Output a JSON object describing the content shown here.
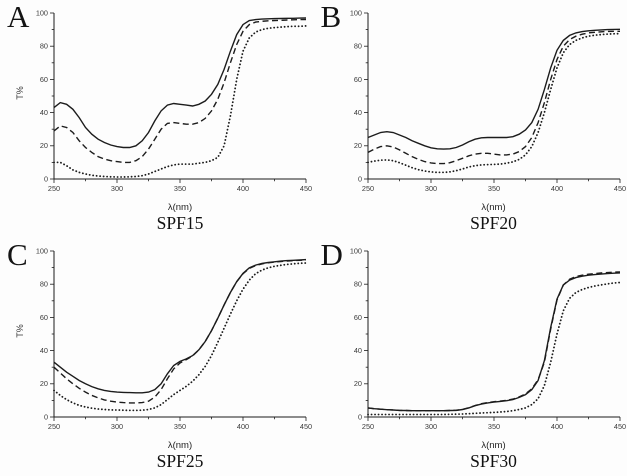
{
  "figure": {
    "background": "#fdfdfd",
    "line_color": "#1c1c1c",
    "tick_label_color": "#3a3a3a"
  },
  "chart_data": [
    {
      "type": "line",
      "letter": "A",
      "title": "SPF15",
      "xlabel": "λ(nm)",
      "ylabel": "T%",
      "xlim": [
        250,
        450
      ],
      "ylim": [
        0,
        100
      ],
      "xticks": [
        250,
        300,
        350,
        400,
        450
      ],
      "yticks": [
        0,
        20,
        40,
        60,
        80,
        100
      ],
      "x_minor_step": 25,
      "y_minor_step": 10,
      "grid": false,
      "legend": "none",
      "x": [
        250,
        255,
        260,
        265,
        270,
        275,
        280,
        285,
        290,
        295,
        300,
        305,
        310,
        315,
        320,
        325,
        330,
        335,
        340,
        345,
        350,
        355,
        360,
        365,
        370,
        375,
        380,
        385,
        390,
        395,
        400,
        405,
        410,
        415,
        420,
        425,
        430,
        435,
        440,
        445,
        450
      ],
      "series": [
        {
          "name": "solid-line",
          "style": "solid",
          "values": [
            43,
            46,
            45,
            42,
            37,
            31,
            27,
            24,
            22,
            20.5,
            19.5,
            19,
            19,
            20,
            23,
            28,
            35,
            41,
            44.5,
            45.5,
            45,
            44.5,
            44,
            45,
            47,
            51,
            57,
            66,
            77,
            87,
            93,
            95.5,
            96,
            96.3,
            96.5,
            96.6,
            96.7,
            96.8,
            96.8,
            96.9,
            97
          ]
        },
        {
          "name": "dashed-line",
          "style": "dashed",
          "values": [
            29,
            32,
            31,
            28,
            23,
            19,
            16,
            13.5,
            12,
            11,
            10.5,
            10,
            10,
            11,
            13.5,
            18,
            24,
            30,
            33.5,
            34,
            33.5,
            33,
            33,
            34,
            36.5,
            41,
            48,
            58,
            70,
            81,
            89,
            93,
            94.5,
            95,
            95.3,
            95.5,
            95.6,
            95.8,
            95.9,
            96,
            96
          ]
        },
        {
          "name": "dotted-line",
          "style": "dotted",
          "values": [
            10,
            10,
            8,
            5.5,
            4,
            3,
            2.2,
            1.8,
            1.5,
            1.3,
            1.2,
            1.2,
            1.3,
            1.5,
            2,
            3,
            4.5,
            6,
            7.5,
            8.5,
            9,
            9,
            9,
            9.5,
            10,
            11,
            13,
            20,
            38,
            60,
            77,
            85,
            88.5,
            90,
            90.8,
            91.2,
            91.5,
            91.8,
            92,
            92,
            92.2
          ]
        }
      ]
    },
    {
      "type": "line",
      "letter": "B",
      "title": "SPF20",
      "xlabel": "λ(nm)",
      "ylabel": "",
      "xlim": [
        250,
        450
      ],
      "ylim": [
        0,
        100
      ],
      "xticks": [
        250,
        300,
        350,
        400,
        450
      ],
      "yticks": [
        0,
        20,
        40,
        60,
        80,
        100
      ],
      "x_minor_step": 25,
      "y_minor_step": 10,
      "grid": false,
      "legend": "none",
      "x": [
        250,
        255,
        260,
        265,
        270,
        275,
        280,
        285,
        290,
        295,
        300,
        305,
        310,
        315,
        320,
        325,
        330,
        335,
        340,
        345,
        350,
        355,
        360,
        365,
        370,
        375,
        380,
        385,
        390,
        395,
        400,
        405,
        410,
        415,
        420,
        425,
        430,
        435,
        440,
        445,
        450
      ],
      "series": [
        {
          "name": "solid-line",
          "style": "solid",
          "values": [
            25,
            26.5,
            28,
            28.5,
            28,
            26.5,
            25,
            23,
            21.5,
            20,
            18.8,
            18.2,
            18,
            18.2,
            19,
            20.5,
            22.5,
            24,
            24.8,
            25,
            25,
            25,
            25,
            25.5,
            27,
            29.5,
            34,
            42,
            54,
            67,
            77.5,
            83.5,
            86.5,
            88,
            88.8,
            89.3,
            89.6,
            89.8,
            90,
            90.1,
            90.2
          ]
        },
        {
          "name": "dashed-line",
          "style": "dashed",
          "values": [
            16,
            18,
            19.5,
            20,
            19.3,
            17.5,
            15.5,
            13.5,
            11.8,
            10.5,
            9.7,
            9.3,
            9.3,
            9.8,
            11,
            12.5,
            14,
            15,
            15.5,
            15.5,
            15,
            14.5,
            14.5,
            15,
            16.5,
            19.5,
            25,
            34,
            46,
            60,
            72,
            80,
            84,
            86,
            87.2,
            88,
            88.4,
            88.7,
            88.9,
            89,
            89
          ]
        },
        {
          "name": "dotted-line",
          "style": "dotted",
          "values": [
            10,
            10.8,
            11.3,
            11.5,
            11,
            9.8,
            8.3,
            6.8,
            5.6,
            4.8,
            4.3,
            4,
            4,
            4.3,
            5,
            6,
            7.2,
            8,
            8.5,
            8.7,
            8.8,
            9,
            9.5,
            10.3,
            11.8,
            14.5,
            19.5,
            28,
            40,
            54,
            67,
            76,
            81,
            83.5,
            85,
            86,
            86.6,
            87,
            87.3,
            87.5,
            87.6
          ]
        }
      ]
    },
    {
      "type": "line",
      "letter": "C",
      "title": "SPF25",
      "xlabel": "λ(nm)",
      "ylabel": "T%",
      "xlim": [
        250,
        450
      ],
      "ylim": [
        0,
        100
      ],
      "xticks": [
        250,
        300,
        350,
        400,
        450
      ],
      "yticks": [
        0,
        20,
        40,
        60,
        80,
        100
      ],
      "x_minor_step": 25,
      "y_minor_step": 10,
      "grid": false,
      "legend": "none",
      "x": [
        250,
        255,
        260,
        265,
        270,
        275,
        280,
        285,
        290,
        295,
        300,
        305,
        310,
        315,
        320,
        325,
        330,
        335,
        340,
        345,
        350,
        355,
        360,
        365,
        370,
        375,
        380,
        385,
        390,
        395,
        400,
        405,
        410,
        415,
        420,
        425,
        430,
        435,
        440,
        445,
        450
      ],
      "series": [
        {
          "name": "solid-line",
          "style": "solid",
          "values": [
            33,
            30,
            27,
            24.5,
            22,
            20,
            18.3,
            17,
            16,
            15.4,
            15,
            14.8,
            14.7,
            14.6,
            14.6,
            15,
            16.5,
            20,
            26,
            31,
            33.5,
            35,
            37,
            40.5,
            45.5,
            52,
            59.5,
            67.5,
            75,
            81.5,
            86.5,
            89.8,
            91.5,
            92.5,
            93.1,
            93.5,
            93.9,
            94.2,
            94.4,
            94.6,
            94.8
          ]
        },
        {
          "name": "dashed-line",
          "style": "dashed",
          "values": [
            30,
            26.5,
            23,
            20,
            17.3,
            15,
            13,
            11.5,
            10.3,
            9.5,
            9,
            8.7,
            8.5,
            8.5,
            8.7,
            9.5,
            12,
            16.5,
            23,
            29,
            32.5,
            34.5,
            36.8,
            40.5,
            45.5,
            52,
            59.5,
            67.5,
            75,
            81.5,
            86.3,
            89.5,
            91.2,
            92.2,
            92.9,
            93.3,
            93.7,
            94,
            94.2,
            94.4,
            94.6
          ]
        },
        {
          "name": "dotted-line",
          "style": "dotted",
          "values": [
            16,
            13,
            10.5,
            8.5,
            7,
            6,
            5.3,
            4.8,
            4.5,
            4.3,
            4.2,
            4.1,
            4,
            4,
            4.1,
            4.5,
            5.5,
            7.5,
            10.5,
            13.5,
            16,
            18.5,
            21.5,
            25.5,
            30.5,
            37,
            45,
            53.5,
            62,
            70,
            77,
            82.5,
            86.3,
            88.5,
            89.9,
            90.8,
            91.4,
            91.9,
            92.3,
            92.6,
            92.8
          ]
        }
      ]
    },
    {
      "type": "line",
      "letter": "D",
      "title": "SPF30",
      "xlabel": "λ(nm)",
      "ylabel": "",
      "xlim": [
        250,
        450
      ],
      "ylim": [
        0,
        100
      ],
      "xticks": [
        250,
        300,
        350,
        400,
        450
      ],
      "yticks": [
        0,
        20,
        40,
        60,
        80,
        100
      ],
      "x_minor_step": 25,
      "y_minor_step": 10,
      "grid": false,
      "legend": "none",
      "x": [
        250,
        255,
        260,
        265,
        270,
        275,
        280,
        285,
        290,
        295,
        300,
        305,
        310,
        315,
        320,
        325,
        330,
        335,
        340,
        345,
        350,
        355,
        360,
        365,
        370,
        375,
        380,
        385,
        390,
        395,
        400,
        405,
        410,
        415,
        420,
        425,
        430,
        435,
        440,
        445,
        450
      ],
      "series": [
        {
          "name": "solid-line",
          "style": "solid",
          "values": [
            5.5,
            5,
            4.7,
            4.4,
            4.2,
            4,
            3.9,
            3.8,
            3.8,
            3.8,
            3.8,
            3.8,
            3.8,
            3.9,
            4,
            4.5,
            5.5,
            6.8,
            7.8,
            8.5,
            9,
            9.4,
            9.8,
            10.5,
            11.8,
            13.5,
            16.5,
            22,
            34,
            54,
            71,
            79.5,
            82.5,
            84,
            84.8,
            85.4,
            85.8,
            86.1,
            86.4,
            86.6,
            86.8
          ]
        },
        {
          "name": "dashed-line",
          "style": "dashed",
          "values": [
            5.5,
            5,
            4.7,
            4.4,
            4.2,
            4,
            3.9,
            3.8,
            3.8,
            3.8,
            3.8,
            3.8,
            3.8,
            3.9,
            4.1,
            4.6,
            5.6,
            6.9,
            8,
            8.7,
            9.2,
            9.6,
            10,
            10.8,
            12.1,
            13.9,
            17,
            22.5,
            33,
            53,
            70.5,
            79.5,
            83,
            84.6,
            85.4,
            86,
            86.4,
            86.8,
            87,
            87.2,
            87.4
          ]
        },
        {
          "name": "dotted-line",
          "style": "dotted",
          "values": [
            1.5,
            1.5,
            1.5,
            1.5,
            1.5,
            1.5,
            1.5,
            1.5,
            1.5,
            1.5,
            1.5,
            1.5,
            1.5,
            1.6,
            1.7,
            1.8,
            2,
            2.2,
            2.4,
            2.6,
            2.8,
            3,
            3.3,
            3.8,
            4.5,
            5.5,
            7.5,
            11,
            19,
            33,
            50,
            64,
            71.5,
            75,
            76.8,
            78,
            78.9,
            79.6,
            80.2,
            80.7,
            81
          ]
        }
      ]
    }
  ]
}
